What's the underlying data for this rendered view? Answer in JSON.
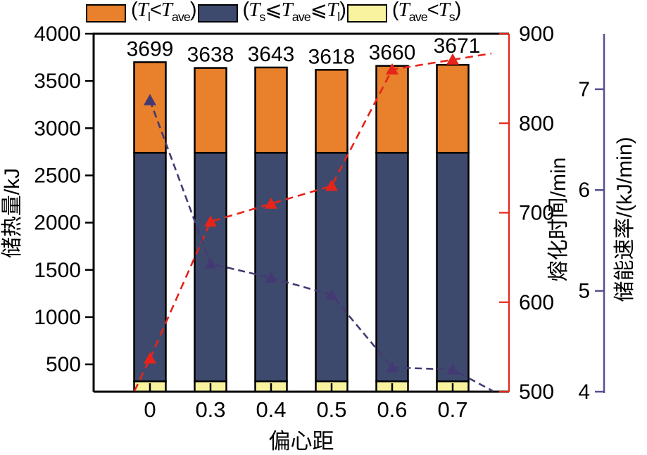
{
  "chart_data": {
    "type": "bar+line (stacked bars, two secondary line series)",
    "x_axis": {
      "label": "偏心距",
      "categories": [
        "0",
        "0.3",
        "0.4",
        "0.5",
        "0.6",
        "0.7"
      ]
    },
    "left_axis": {
      "label": "储热量/kJ",
      "ticks": [
        "500",
        "1000",
        "1500",
        "2000",
        "2500",
        "3000",
        "3500",
        "4000"
      ],
      "min": 210,
      "max": 4000
    },
    "right_axis_time": {
      "label": "熔化时间/min",
      "ticks": [
        "500",
        "600",
        "700",
        "800",
        "900"
      ],
      "min": 500,
      "max": 900,
      "color": "#e62419"
    },
    "right_axis_rate": {
      "label": "储能速率/(kJ/min)",
      "ticks": [
        "4",
        "5",
        "6",
        "7"
      ],
      "min": 4,
      "max": 7.55,
      "color": "#56508e"
    },
    "bars": {
      "totals": [
        3699,
        3638,
        3643,
        3618,
        3660,
        3671
      ],
      "total_labels": [
        "3699",
        "3638",
        "3643",
        "3618",
        "3660",
        "3671"
      ],
      "segment_bounds": {
        "yellow_top": 320,
        "navy_top": 2740
      },
      "colors": {
        "orange": "#e8802c",
        "navy": "#3e4a6d",
        "yellow": "#f9f3a0",
        "outline": "#000000"
      }
    },
    "series": [
      {
        "name": "melting-time",
        "axis": "right_axis_time",
        "marker": "triangle-up",
        "color": "#e62419",
        "values": [
          537,
          690,
          710,
          730,
          860,
          871
        ]
      },
      {
        "name": "storage-rate",
        "axis": "right_axis_rate",
        "marker": "triangle-up",
        "color": "#443a73",
        "values": [
          6.89,
          5.27,
          5.13,
          4.96,
          4.24,
          4.22
        ]
      }
    ],
    "legend": [
      {
        "color": "#e8802c",
        "html": "(<i>T</i><sub>l</sub>&lt;<i>T</i><sub>ave</sub>)"
      },
      {
        "color": "#3e4a6d",
        "html": "(<i>T</i><sub>s</sub>⩽<i>T</i><sub>ave</sub>⩽<i>T</i><sub>l</sub>)"
      },
      {
        "color": "#f9f3a0",
        "html": "(<i>T</i><sub>ave</sub>&lt;<i>T</i><sub>s</sub>)"
      }
    ],
    "grid": "off",
    "legend_position": "top"
  }
}
